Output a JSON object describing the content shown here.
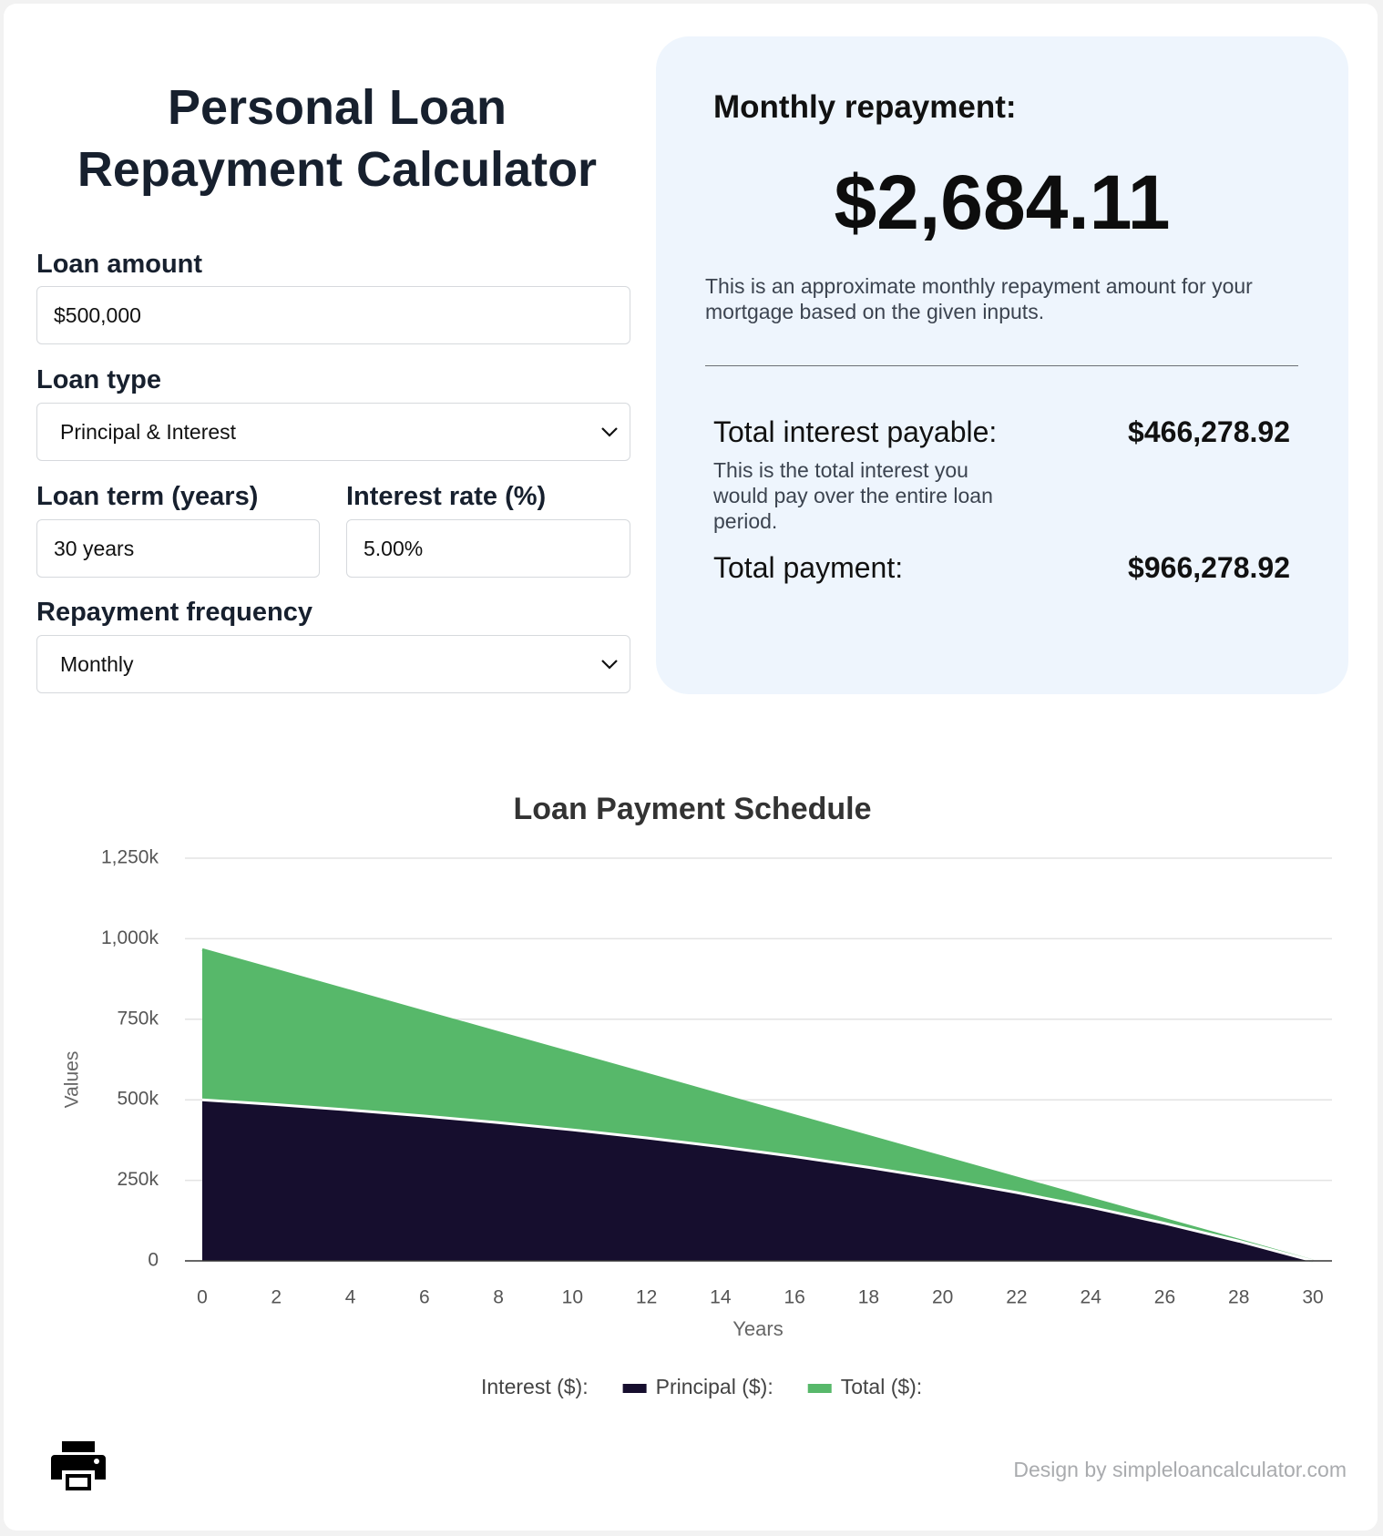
{
  "header": {
    "title": "Personal Loan Repayment Calculator"
  },
  "form": {
    "loan_amount": {
      "label": "Loan amount",
      "value": "$500,000"
    },
    "loan_type": {
      "label": "Loan type",
      "value": "Principal & Interest"
    },
    "loan_term": {
      "label": "Loan term (years)",
      "value": "30 years"
    },
    "interest_rate": {
      "label": "Interest rate (%)",
      "value": "5.00%"
    },
    "repayment_frequency": {
      "label": "Repayment frequency",
      "value": "Monthly"
    }
  },
  "summary": {
    "monthly_label": "Monthly repayment:",
    "monthly_value": "$2,684.11",
    "monthly_note": "This is an approximate monthly repayment amount for your mortgage based on the given inputs.",
    "interest_label": "Total interest payable:",
    "interest_value": "$466,278.92",
    "interest_note": "This is the total interest you would pay over the entire loan period.",
    "total_label": "Total payment:",
    "total_value": "$966,278.92"
  },
  "chart_data": {
    "type": "area",
    "title": "Loan Payment Schedule",
    "x_label": "Years",
    "y_label": "Values",
    "x": [
      0,
      2,
      4,
      6,
      8,
      10,
      12,
      14,
      16,
      18,
      20,
      22,
      24,
      26,
      28,
      30
    ],
    "series": [
      {
        "name": "Interest ($):"
      },
      {
        "name": "Principal ($):",
        "color": "#160e2e",
        "values": [
          500000,
          484870,
          468150,
          449680,
          429270,
          406710,
          381790,
          354260,
          323830,
          290210,
          253070,
          212030,
          166680,
          116570,
          61200,
          0
        ]
      },
      {
        "name": "Total ($):",
        "color": "#57b86a",
        "values": [
          966280,
          901860,
          837440,
          773020,
          708600,
          644190,
          579770,
          515350,
          450930,
          386510,
          322090,
          257670,
          193260,
          128840,
          64420,
          0
        ]
      }
    ],
    "xlim": [
      0,
      30
    ],
    "xticks": [
      0,
      2,
      4,
      6,
      8,
      10,
      12,
      14,
      16,
      18,
      20,
      22,
      24,
      26,
      28,
      30
    ],
    "ylim": [
      0,
      1250000
    ],
    "yticks": [
      0,
      {
        "value": 250000,
        "label": "250k"
      },
      {
        "value": 500000,
        "label": "500k"
      },
      {
        "value": 750000,
        "label": "750k"
      },
      {
        "value": 1000000,
        "label": "1,000k"
      },
      {
        "value": 1250000,
        "label": "1,250k"
      }
    ],
    "grid": true
  },
  "footer": {
    "credit": "Design by simpleloancalculator.com"
  }
}
